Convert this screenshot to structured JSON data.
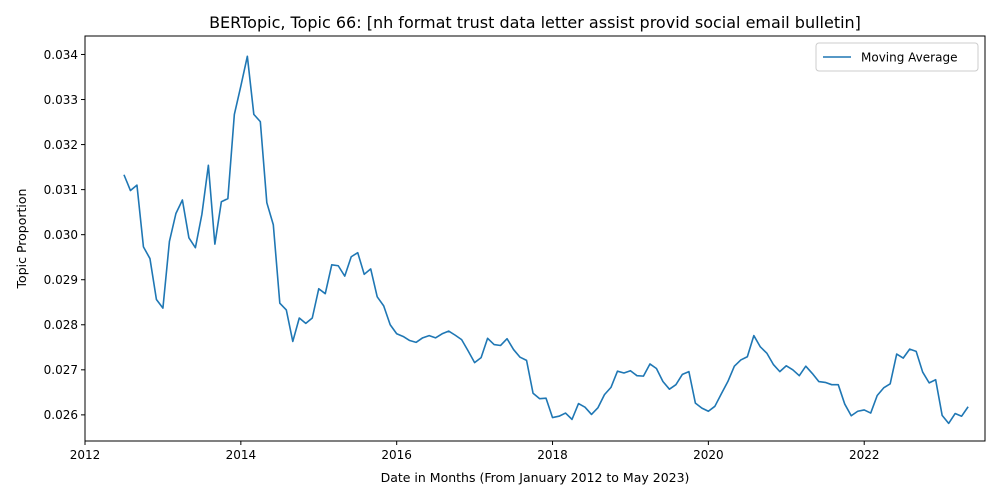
{
  "chart_data": {
    "type": "line",
    "title": "BERTopic, Topic 66: [nh format trust data letter assist provid social email bulletin]",
    "xlabel": "Date in Months (From January 2012 to May 2023)",
    "ylabel": "Topic Proportion",
    "xlim": [
      2012.0,
      2023.55
    ],
    "ylim": [
      0.02542,
      0.03441
    ],
    "x_ticks": [
      2012,
      2014,
      2016,
      2018,
      2020,
      2022
    ],
    "x_tick_labels": [
      "2012",
      "2014",
      "2016",
      "2018",
      "2020",
      "2022"
    ],
    "y_ticks": [
      0.026,
      0.027,
      0.028,
      0.029,
      0.03,
      0.031,
      0.032,
      0.033,
      0.034
    ],
    "y_tick_labels": [
      "0.026",
      "0.027",
      "0.028",
      "0.029",
      "0.030",
      "0.031",
      "0.032",
      "0.033",
      "0.034"
    ],
    "grid": false,
    "legend": {
      "position": "upper right"
    },
    "colors": {
      "series": "#1f77b4",
      "axes": "#000000",
      "legend_frame": "#cccccc"
    },
    "series": [
      {
        "name": "Moving Average",
        "start": "2012-07",
        "step": "1 month",
        "y": [
          0.03133,
          0.03098,
          0.0311,
          0.02973,
          0.02947,
          0.02856,
          0.02837,
          0.02985,
          0.03047,
          0.03077,
          0.02993,
          0.02971,
          0.03045,
          0.03154,
          0.02979,
          0.03073,
          0.0308,
          0.03267,
          0.0333,
          0.03396,
          0.03267,
          0.03251,
          0.03071,
          0.03022,
          0.02848,
          0.02833,
          0.02763,
          0.02815,
          0.02803,
          0.02815,
          0.0288,
          0.02869,
          0.02933,
          0.02931,
          0.02908,
          0.02951,
          0.0296,
          0.02912,
          0.02924,
          0.02862,
          0.02842,
          0.028,
          0.0278,
          0.02774,
          0.02765,
          0.02761,
          0.02771,
          0.02776,
          0.02771,
          0.0278,
          0.02786,
          0.02777,
          0.02767,
          0.02742,
          0.02716,
          0.02727,
          0.0277,
          0.02756,
          0.02754,
          0.02769,
          0.02745,
          0.02728,
          0.02721,
          0.02648,
          0.02636,
          0.02637,
          0.02594,
          0.02597,
          0.02604,
          0.0259,
          0.02625,
          0.02617,
          0.02601,
          0.02616,
          0.02645,
          0.02661,
          0.02697,
          0.02693,
          0.02698,
          0.02687,
          0.02686,
          0.02713,
          0.02703,
          0.02674,
          0.02657,
          0.02667,
          0.0269,
          0.02696,
          0.02626,
          0.02615,
          0.02608,
          0.02619,
          0.02647,
          0.02674,
          0.02708,
          0.02722,
          0.02729,
          0.02776,
          0.02751,
          0.02737,
          0.02712,
          0.02696,
          0.02709,
          0.027,
          0.02687,
          0.02708,
          0.02692,
          0.02674,
          0.02672,
          0.02667,
          0.02667,
          0.02624,
          0.02598,
          0.02608,
          0.02611,
          0.02604,
          0.02643,
          0.0266,
          0.02669,
          0.02735,
          0.02726,
          0.02746,
          0.02741,
          0.02695,
          0.02671,
          0.02678,
          0.02599,
          0.02581,
          0.02603,
          0.02597,
          0.02618
        ]
      }
    ]
  }
}
